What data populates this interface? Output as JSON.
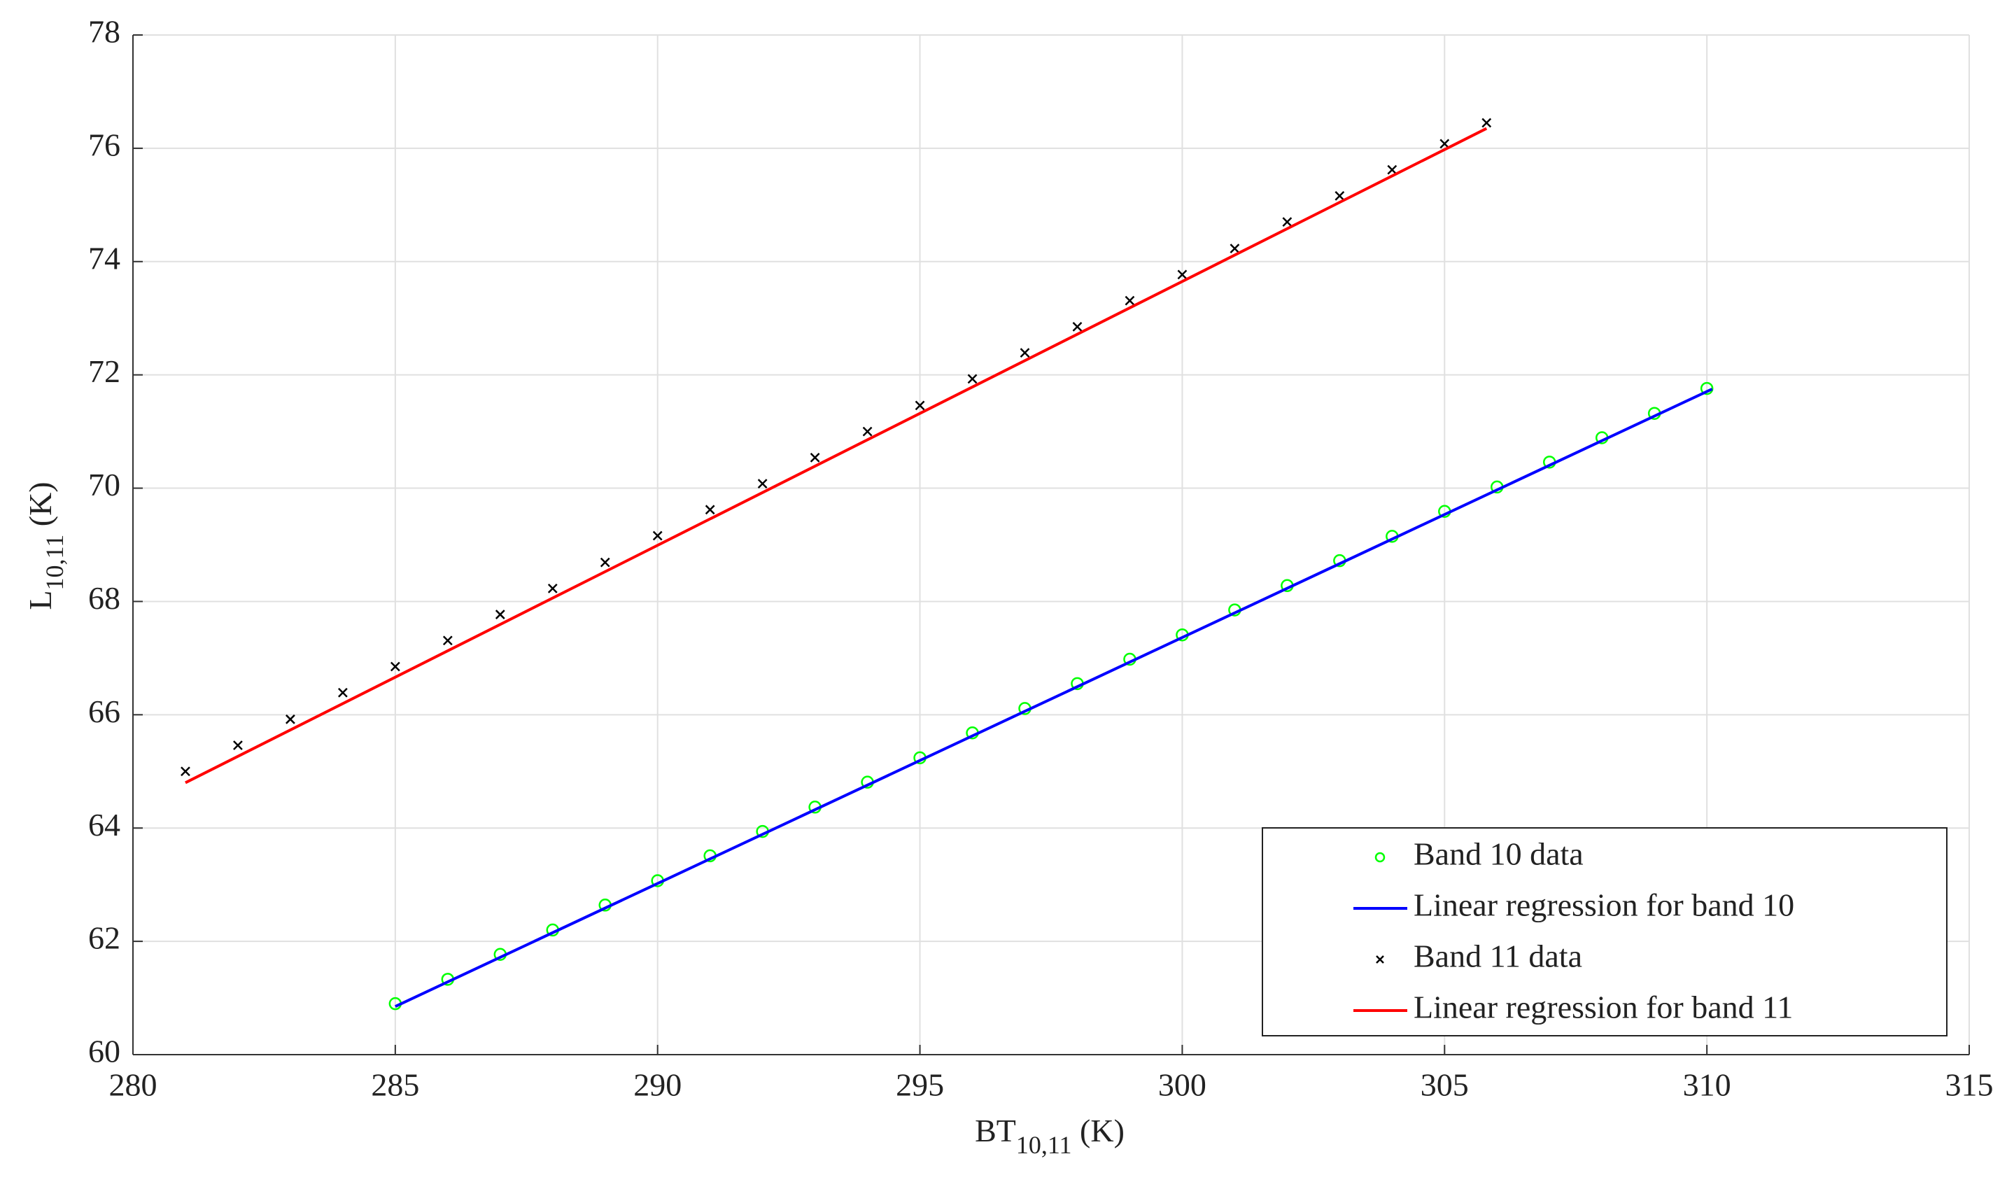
{
  "chart_data": {
    "type": "scatter",
    "xlabel": {
      "main": "BT",
      "sub": "10,11",
      "rest": " (K)"
    },
    "ylabel": {
      "main": "L",
      "sub": "10,11",
      "rest": " (K)"
    },
    "xlim": [
      280,
      315
    ],
    "xticks": [
      280,
      285,
      290,
      295,
      300,
      305,
      310,
      315
    ],
    "ylim": [
      60,
      78
    ],
    "yticks": [
      60,
      62,
      64,
      66,
      68,
      70,
      72,
      74,
      76,
      78
    ],
    "grid": true,
    "legend": "lower right",
    "series": [
      {
        "name": "Band 10 data",
        "color": "#00ff00",
        "style": "circle",
        "x": [
          285,
          286,
          287,
          288,
          289,
          290,
          291,
          292,
          293,
          294,
          295,
          296,
          297,
          298,
          299,
          300,
          301,
          302,
          303,
          304,
          305,
          306,
          307,
          308,
          309,
          310
        ],
        "values": [
          60.9,
          61.33,
          61.77,
          62.2,
          62.64,
          63.07,
          63.51,
          63.94,
          64.37,
          64.81,
          65.24,
          65.68,
          66.11,
          66.55,
          66.98,
          67.41,
          67.85,
          68.28,
          68.72,
          69.15,
          69.59,
          70.02,
          70.46,
          70.89,
          71.32,
          71.76
        ]
      },
      {
        "name": "Linear regression for band 10",
        "color": "#0000ff",
        "style": "line",
        "x": [
          285,
          310.1
        ],
        "values": [
          60.85,
          71.75
        ]
      },
      {
        "name": "Band 11 data",
        "color": "#000000",
        "style": "cross",
        "x": [
          281,
          282,
          283,
          284,
          285,
          286,
          287,
          288,
          289,
          290,
          291,
          292,
          293,
          294,
          295,
          296,
          297,
          298,
          299,
          300,
          301,
          302,
          303,
          304,
          305,
          305.8
        ],
        "values": [
          65.0,
          65.46,
          65.92,
          66.39,
          66.85,
          67.31,
          67.77,
          68.23,
          68.69,
          69.16,
          69.62,
          70.08,
          70.54,
          71.0,
          71.46,
          71.93,
          72.39,
          72.85,
          73.31,
          73.77,
          74.23,
          74.7,
          75.16,
          75.62,
          76.08,
          76.45
        ]
      },
      {
        "name": "Linear regression for band 11",
        "color": "#ff0000",
        "style": "line",
        "x": [
          281,
          305.8
        ],
        "values": [
          64.8,
          76.35
        ]
      }
    ]
  }
}
